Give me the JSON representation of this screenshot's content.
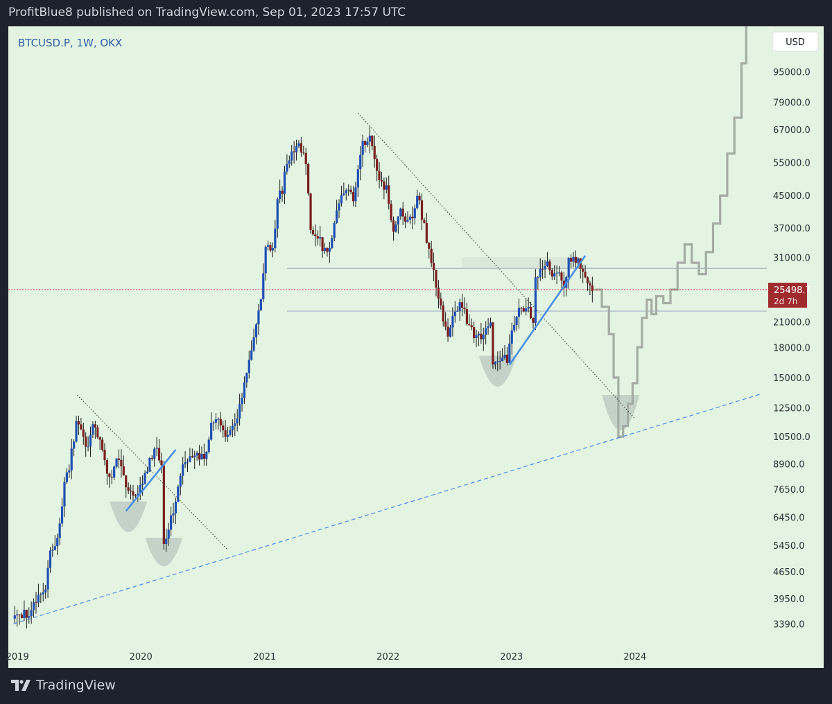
{
  "header": {
    "publisher_line": "ProfitBlue8 published on TradingView.com, Sep 01, 2023 17:57 UTC"
  },
  "footer": {
    "brand": "TradingView"
  },
  "colors": {
    "frame": "#1e222d",
    "plot_bg": "#e3f4e2",
    "candle_up": "#1e4fb3",
    "candle_down": "#7a1e1e",
    "wick": "#1a1a1a",
    "projection": "#a4aca4",
    "trend_blue": "#4a8fe8",
    "dotted_line": "#4a504a",
    "price_line": "#d33a3a",
    "price_badge": "#a02b2f",
    "level_line": "#9aa6c0",
    "bowl": "#b9c8bf"
  },
  "chart_data": {
    "type": "candlestick",
    "title": "BTCUSD.P, 1W, OKX",
    "currency_button": "USD",
    "y_scale": "log",
    "y_ticks": [
      3390.0,
      3950.0,
      4650.0,
      5450.0,
      6450.0,
      7650.0,
      8900.0,
      10500.0,
      12500.0,
      15000.0,
      18000.0,
      21000.0,
      31000.0,
      37000.0,
      45000.0,
      55000.0,
      67000.0,
      79000.0,
      95000.0
    ],
    "y_tick_labels": [
      "3390.0",
      "3950.0",
      "4650.0",
      "5450.0",
      "6450.0",
      "7650.0",
      "8900.0",
      "10500.0",
      "12500.0",
      "15000.0",
      "18000.0",
      "21000.0",
      "31000.0",
      "37000.0",
      "45000.0",
      "55000.0",
      "67000.0",
      "79000.0",
      "95000.0"
    ],
    "x_ticks": [
      {
        "date": "2019-01-01",
        "label": "2019"
      },
      {
        "date": "2020-01-01",
        "label": "2020"
      },
      {
        "date": "2021-01-01",
        "label": "2021"
      },
      {
        "date": "2022-01-01",
        "label": "2022"
      },
      {
        "date": "2023-01-01",
        "label": "2023"
      },
      {
        "date": "2024-01-01",
        "label": "2024"
      }
    ],
    "x_range": [
      "2018-12-05",
      "2025-01-25"
    ],
    "y_range": [
      3020,
      125000
    ],
    "current_price": {
      "value": 25498.7,
      "label": "25498.7",
      "countdown": "2d 7h"
    },
    "horizontal_levels": [
      29000,
      22400
    ],
    "keypoints": [
      [
        "2018-12-17",
        3500
      ],
      [
        "2019-01-14",
        3600
      ],
      [
        "2019-02-08",
        3550
      ],
      [
        "2019-02-25",
        3900
      ],
      [
        "2019-03-25",
        4100
      ],
      [
        "2019-04-08",
        5200
      ],
      [
        "2019-05-01",
        5700
      ],
      [
        "2019-05-20",
        8000
      ],
      [
        "2019-06-03",
        8700
      ],
      [
        "2019-06-20",
        10800
      ],
      [
        "2019-06-27",
        11800
      ],
      [
        "2019-07-15",
        10200
      ],
      [
        "2019-07-29",
        10000
      ],
      [
        "2019-08-12",
        11200
      ],
      [
        "2019-09-02",
        10400
      ],
      [
        "2019-09-23",
        8500
      ],
      [
        "2019-10-07",
        8200
      ],
      [
        "2019-10-21",
        9400
      ],
      [
        "2019-11-04",
        9000
      ],
      [
        "2019-11-25",
        7400
      ],
      [
        "2019-12-16",
        7200
      ],
      [
        "2020-01-06",
        8100
      ],
      [
        "2020-02-03",
        9300
      ],
      [
        "2020-02-17",
        9900
      ],
      [
        "2020-03-02",
        8800
      ],
      [
        "2020-03-09",
        5500
      ],
      [
        "2020-03-16",
        5800
      ],
      [
        "2020-04-06",
        6800
      ],
      [
        "2020-05-04",
        8900
      ],
      [
        "2020-06-01",
        9400
      ],
      [
        "2020-07-06",
        9200
      ],
      [
        "2020-07-27",
        11200
      ],
      [
        "2020-08-17",
        11700
      ],
      [
        "2020-09-07",
        10300
      ],
      [
        "2020-10-12",
        11500
      ],
      [
        "2020-10-26",
        13400
      ],
      [
        "2020-11-16",
        17000
      ],
      [
        "2020-11-30",
        19200
      ],
      [
        "2020-12-21",
        23500
      ],
      [
        "2021-01-04",
        34000
      ],
      [
        "2021-01-25",
        32000
      ],
      [
        "2021-02-08",
        44000
      ],
      [
        "2021-02-22",
        46000
      ],
      [
        "2021-03-08",
        56000
      ],
      [
        "2021-03-29",
        58000
      ],
      [
        "2021-04-12",
        61000
      ],
      [
        "2021-05-03",
        56000
      ],
      [
        "2021-05-17",
        37000
      ],
      [
        "2021-06-07",
        35000
      ],
      [
        "2021-06-21",
        33000
      ],
      [
        "2021-07-12",
        32000
      ],
      [
        "2021-07-26",
        39000
      ],
      [
        "2021-08-16",
        46000
      ],
      [
        "2021-09-06",
        48000
      ],
      [
        "2021-09-20",
        43000
      ],
      [
        "2021-10-04",
        54000
      ],
      [
        "2021-10-18",
        61000
      ],
      [
        "2021-11-08",
        63500
      ],
      [
        "2021-11-22",
        57000
      ],
      [
        "2021-12-06",
        49000
      ],
      [
        "2021-12-27",
        47000
      ],
      [
        "2022-01-17",
        36000
      ],
      [
        "2022-02-07",
        42000
      ],
      [
        "2022-02-21",
        38000
      ],
      [
        "2022-03-14",
        39000
      ],
      [
        "2022-03-28",
        46000
      ],
      [
        "2022-04-11",
        40000
      ],
      [
        "2022-05-09",
        30000
      ],
      [
        "2022-06-13",
        21000
      ],
      [
        "2022-06-27",
        19500
      ],
      [
        "2022-07-18",
        22500
      ],
      [
        "2022-08-08",
        23500
      ],
      [
        "2022-08-29",
        20000
      ],
      [
        "2022-09-19",
        19400
      ],
      [
        "2022-10-10",
        19300
      ],
      [
        "2022-10-31",
        20500
      ],
      [
        "2022-11-07",
        16500
      ],
      [
        "2022-11-28",
        17000
      ],
      [
        "2022-12-19",
        16800
      ],
      [
        "2023-01-09",
        20800
      ],
      [
        "2023-01-23",
        23000
      ],
      [
        "2023-02-06",
        22000
      ],
      [
        "2023-02-20",
        23500
      ],
      [
        "2023-03-06",
        20500
      ],
      [
        "2023-03-13",
        26900
      ],
      [
        "2023-03-27",
        28400
      ],
      [
        "2023-04-10",
        30200
      ],
      [
        "2023-05-01",
        28200
      ],
      [
        "2023-05-22",
        27500
      ],
      [
        "2023-06-05",
        25800
      ],
      [
        "2023-06-19",
        30500
      ],
      [
        "2023-07-10",
        30300
      ],
      [
        "2023-07-31",
        29200
      ],
      [
        "2023-08-14",
        26100
      ],
      [
        "2023-08-28",
        25500
      ]
    ],
    "projection": [
      [
        "2023-09-04",
        25500
      ],
      [
        "2023-09-25",
        23000
      ],
      [
        "2023-10-16",
        19500
      ],
      [
        "2023-10-30",
        15000
      ],
      [
        "2023-11-13",
        10500
      ],
      [
        "2023-11-27",
        11200
      ],
      [
        "2023-12-11",
        12800
      ],
      [
        "2023-12-25",
        14500
      ],
      [
        "2024-01-08",
        18000
      ],
      [
        "2024-01-22",
        21500
      ],
      [
        "2024-02-05",
        24000
      ],
      [
        "2024-02-19",
        22000
      ],
      [
        "2024-03-04",
        24500
      ],
      [
        "2024-03-25",
        23500
      ],
      [
        "2024-04-15",
        25500
      ],
      [
        "2024-05-06",
        30000
      ],
      [
        "2024-05-27",
        33500
      ],
      [
        "2024-06-17",
        30000
      ],
      [
        "2024-07-08",
        28000
      ],
      [
        "2024-07-29",
        32000
      ],
      [
        "2024-08-19",
        38000
      ],
      [
        "2024-09-09",
        45000
      ],
      [
        "2024-09-30",
        58000
      ],
      [
        "2024-10-21",
        72000
      ],
      [
        "2024-11-11",
        100000
      ],
      [
        "2024-11-25",
        125000
      ]
    ],
    "annotations": {
      "dashed_support": [
        [
          "2018-12-20",
          3390
        ],
        [
          "2025-01-10",
          13600
        ]
      ],
      "dotted_downtrends": [
        [
          [
            "2019-06-27",
            13500
          ],
          [
            "2020-09-14",
            5300
          ]
        ],
        [
          [
            "2021-10-04",
            74000
          ],
          [
            "2024-01-01",
            11700
          ]
        ]
      ],
      "blue_trendlines": [
        [
          [
            "2019-11-18",
            6700
          ],
          [
            "2020-04-13",
            9700
          ]
        ],
        [
          [
            "2022-12-26",
            16200
          ],
          [
            "2023-08-07",
            31300
          ]
        ]
      ],
      "cup_bowls": [
        {
          "center": "2019-11-25",
          "top": 7100,
          "bottom": 5900
        },
        {
          "center": "2020-03-09",
          "top": 5700,
          "bottom": 4800
        },
        {
          "center": "2022-11-21",
          "top": 17100,
          "bottom": 14200
        },
        {
          "center": "2023-11-20",
          "top": 13500,
          "bottom": 10900
        }
      ]
    }
  }
}
